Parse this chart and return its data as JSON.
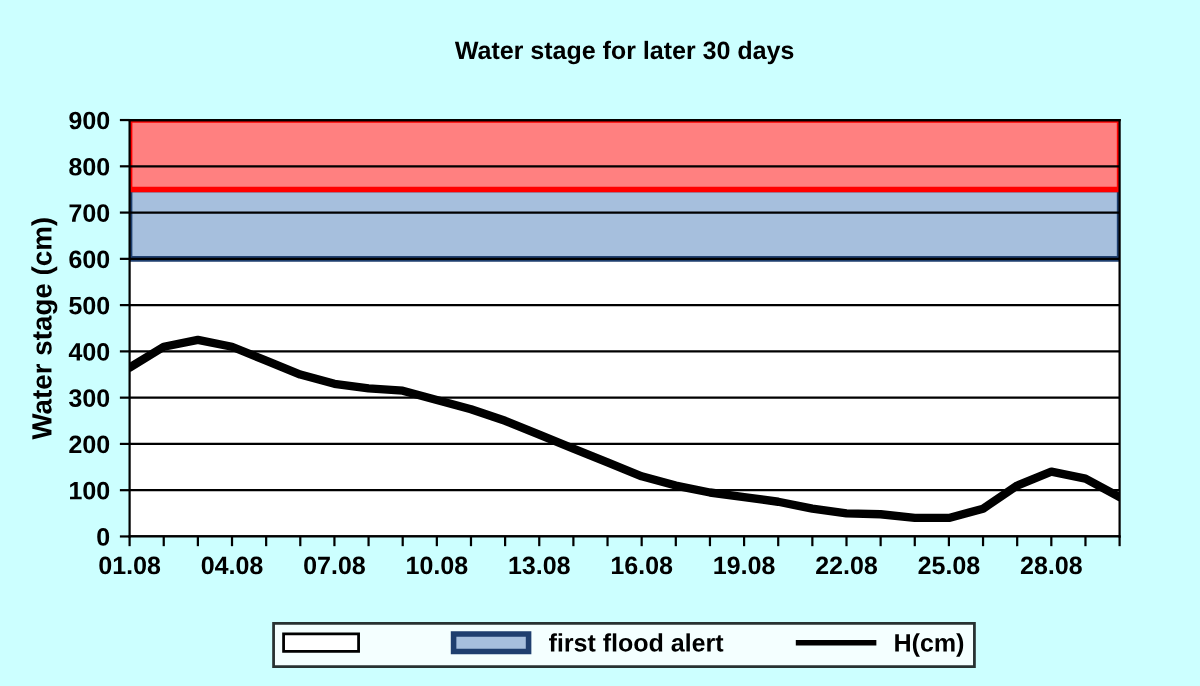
{
  "chart_data": {
    "type": "line",
    "title": "Water stage for later 30 days",
    "ylabel": "Water stage (cm)",
    "categories": [
      "01.08",
      null,
      null,
      "04.08",
      null,
      null,
      "07.08",
      null,
      null,
      "10.08",
      null,
      null,
      "13.08",
      null,
      null,
      "16.08",
      null,
      null,
      "19.08",
      null,
      null,
      "22.08",
      null,
      null,
      "25.08",
      null,
      null,
      "28.08",
      null,
      null
    ],
    "series": [
      {
        "name": "H(cm)",
        "color": "#000000",
        "values": [
          365,
          410,
          425,
          410,
          380,
          350,
          330,
          320,
          315,
          295,
          275,
          250,
          220,
          190,
          160,
          130,
          110,
          95,
          85,
          75,
          60,
          50,
          48,
          40,
          40,
          60,
          110,
          140,
          125,
          85
        ]
      }
    ],
    "bands": [
      {
        "axis": "y",
        "from": 600,
        "to": 750,
        "label": "first flood alert",
        "color": "#a6bfdd"
      },
      {
        "axis": "y",
        "from": 750,
        "to": 900,
        "label": null,
        "color": "#ff8080"
      }
    ],
    "ylim": [
      0,
      900
    ],
    "yticks": [
      0,
      100,
      200,
      300,
      400,
      500,
      600,
      700,
      800,
      900
    ],
    "grid": "y",
    "legend": "bottom",
    "marker": "none",
    "line_style": "solid"
  }
}
